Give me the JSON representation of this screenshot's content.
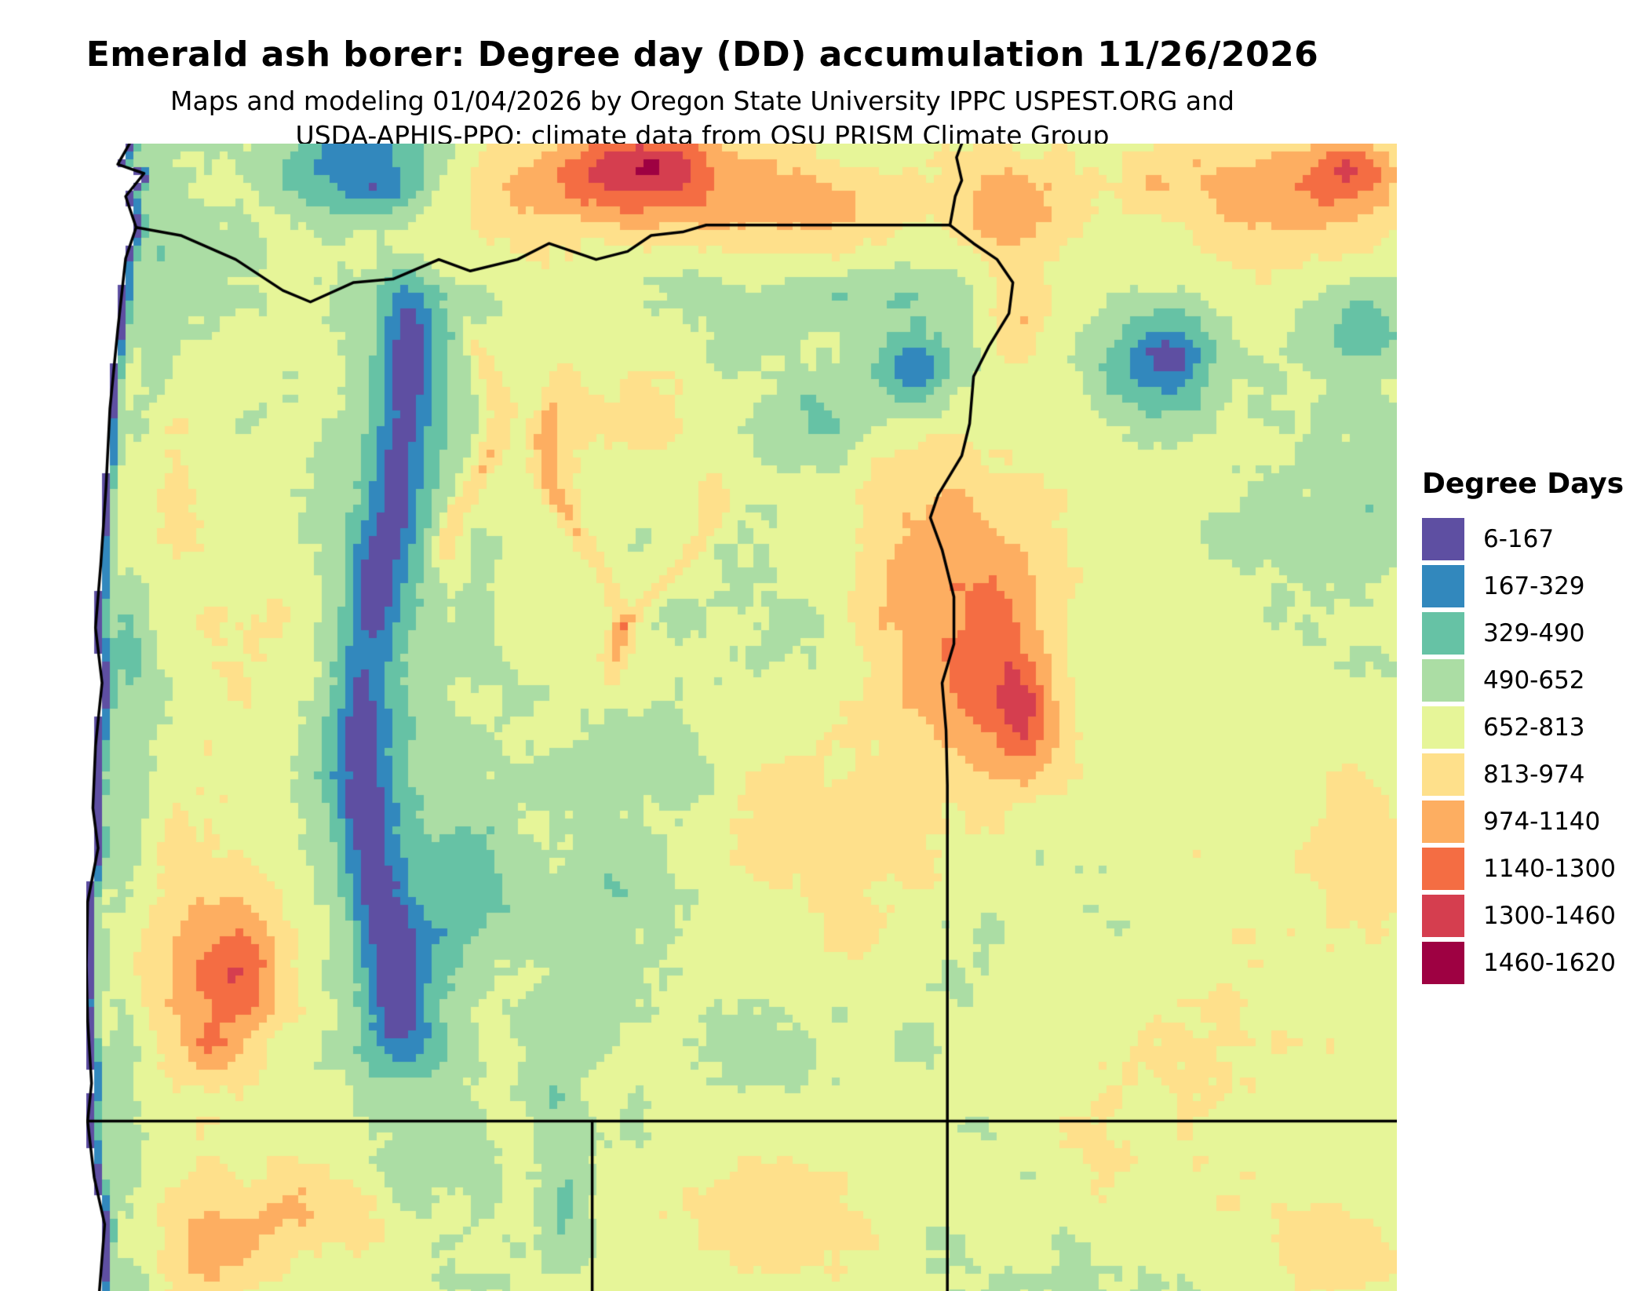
{
  "header": {
    "title": "Emerald ash borer: Degree day (DD) accumulation 11/26/2026",
    "subtitle_line1": "Maps and modeling 01/04/2026 by Oregon State University IPPC USPEST.ORG and",
    "subtitle_line2": "USDA-APHIS-PPQ; climate data from OSU PRISM Climate Group"
  },
  "legend": {
    "title": "Degree Days",
    "entries": [
      {
        "label": "6-167",
        "color": "#5e4fa2"
      },
      {
        "label": "167-329",
        "color": "#3288bd"
      },
      {
        "label": "329-490",
        "color": "#66c2a5"
      },
      {
        "label": "490-652",
        "color": "#abdda4"
      },
      {
        "label": "652-813",
        "color": "#e6f598"
      },
      {
        "label": "813-974",
        "color": "#fee08b"
      },
      {
        "label": "974-1140",
        "color": "#fdae61"
      },
      {
        "label": "1140-1300",
        "color": "#f46d43"
      },
      {
        "label": "1300-1460",
        "color": "#d53e4f"
      },
      {
        "label": "1460-1620",
        "color": "#9e0142"
      }
    ]
  },
  "chart_data": {
    "type": "heatmap",
    "title": "Emerald ash borer: Degree day (DD) accumulation 11/26/2026",
    "legend_title": "Degree Days",
    "bin_labels": [
      "6-167",
      "167-329",
      "329-490",
      "490-652",
      "652-813",
      "813-974",
      "974-1140",
      "1140-1300",
      "1300-1460",
      "1460-1620"
    ],
    "bin_colors": [
      "#5e4fa2",
      "#3288bd",
      "#66c2a5",
      "#abdda4",
      "#e6f598",
      "#fee08b",
      "#fdae61",
      "#f46d43",
      "#d53e4f",
      "#9e0142"
    ],
    "bin_edges": [
      6,
      167,
      329,
      490,
      652,
      813,
      974,
      1140,
      1300,
      1460,
      1620
    ],
    "region": "Oregon state border shown over a gridded degree-day raster"
  },
  "map": {
    "base_value": 700,
    "bins": [
      6,
      167,
      329,
      490,
      652,
      813,
      974,
      1140,
      1300,
      1460,
      1620
    ],
    "ocean_color": "#ffffff",
    "border_color": "#000000",
    "features": [
      [
        0.42,
        0.035,
        0.13,
        0.05,
        470
      ],
      [
        0.435,
        0.015,
        0.05,
        0.03,
        320
      ],
      [
        0.56,
        0.065,
        0.08,
        0.04,
        260
      ],
      [
        0.7,
        0.05,
        0.05,
        0.05,
        340
      ],
      [
        0.71,
        0.15,
        0.025,
        0.05,
        240
      ],
      [
        0.955,
        0.04,
        0.06,
        0.05,
        360
      ],
      [
        0.965,
        0.02,
        0.03,
        0.02,
        260
      ],
      [
        0.84,
        0.03,
        0.07,
        0.04,
        220
      ],
      [
        0.89,
        0.09,
        0.07,
        0.05,
        200
      ],
      [
        0.09,
        0.7,
        0.065,
        0.1,
        330
      ],
      [
        0.115,
        0.725,
        0.035,
        0.045,
        320
      ],
      [
        0.095,
        0.79,
        0.025,
        0.035,
        210
      ],
      [
        0.055,
        0.3,
        0.045,
        0.11,
        170
      ],
      [
        0.13,
        0.44,
        0.055,
        0.08,
        180
      ],
      [
        0.66,
        0.4,
        0.07,
        0.13,
        430
      ],
      [
        0.7,
        0.47,
        0.04,
        0.08,
        300
      ],
      [
        0.715,
        0.5,
        0.025,
        0.05,
        280
      ],
      [
        0.57,
        0.6,
        0.09,
        0.08,
        230
      ],
      [
        0.587,
        0.683,
        0.022,
        0.028,
        170
      ],
      [
        0.1,
        0.955,
        0.07,
        0.05,
        290
      ],
      [
        0.19,
        0.92,
        0.05,
        0.05,
        230
      ],
      [
        0.52,
        0.93,
        0.08,
        0.05,
        210
      ],
      [
        0.85,
        0.78,
        0.12,
        0.14,
        110
      ],
      [
        0.965,
        0.62,
        0.035,
        0.07,
        260
      ],
      [
        0.95,
        0.96,
        0.08,
        0.05,
        190
      ],
      [
        0.38,
        0.28,
        0.09,
        0.1,
        120
      ],
      [
        0.21,
        0.02,
        0.065,
        0.045,
        -500
      ],
      [
        0.225,
        0.04,
        0.03,
        0.02,
        -150
      ],
      [
        0.63,
        0.2,
        0.05,
        0.04,
        -430
      ],
      [
        0.635,
        0.195,
        0.02,
        0.017,
        -150
      ],
      [
        0.55,
        0.25,
        0.05,
        0.035,
        -220
      ],
      [
        0.82,
        0.19,
        0.05,
        0.05,
        -470
      ],
      [
        0.825,
        0.185,
        0.02,
        0.02,
        -170
      ],
      [
        0.55,
        0.22,
        0.02,
        0.02,
        -120
      ],
      [
        0.26,
        0.7,
        0.05,
        0.09,
        -210
      ],
      [
        0.3,
        0.63,
        0.035,
        0.05,
        -150
      ],
      [
        0.41,
        0.64,
        0.04,
        0.06,
        -150
      ],
      [
        0.37,
        0.75,
        0.03,
        0.05,
        -140
      ],
      [
        0.35,
        0.82,
        0.02,
        0.05,
        -150
      ],
      [
        0.46,
        0.55,
        0.03,
        0.04,
        -110
      ],
      [
        0.45,
        0.42,
        0.1,
        0.12,
        -80
      ],
      [
        0.56,
        0.42,
        0.04,
        0.05,
        -110
      ],
      [
        0.97,
        0.32,
        0.05,
        0.06,
        -140
      ],
      [
        0.975,
        0.16,
        0.035,
        0.04,
        -280
      ],
      [
        0.88,
        0.33,
        0.04,
        0.05,
        -120
      ],
      [
        0.5,
        0.78,
        0.04,
        0.05,
        -120
      ],
      [
        0.37,
        0.93,
        0.02,
        0.06,
        -220
      ],
      [
        0.6,
        0.13,
        0.08,
        0.03,
        -150
      ],
      [
        0.5,
        0.18,
        0.04,
        0.03,
        -130
      ]
    ],
    "ridges": [
      {
        "u": 0.228,
        "a1": 0.018,
        "f1": 9,
        "p1": 0,
        "v0": 0.1,
        "v1": 0.82,
        "sigma": 0.022,
        "amp": -420
      },
      {
        "u": 0.228,
        "a1": 0.018,
        "f1": 9,
        "p1": 0,
        "v0": 0.08,
        "v1": 0.95,
        "sigma": 0.06,
        "amp": -190
      },
      {
        "u": 0.295,
        "a1": 0.02,
        "f1": 25,
        "p1": 2,
        "v0": 0.14,
        "v1": 0.4,
        "sigma": 0.01,
        "amp": 280
      },
      {
        "u": 0.38,
        "a1": 0.03,
        "f1": 18,
        "p1": 0,
        "v0": 0.2,
        "v1": 0.48,
        "sigma": 0.009,
        "amp": 260
      },
      {
        "u": 0.44,
        "a1": 0.04,
        "f1": 22,
        "p1": 1,
        "v0": 0.28,
        "v1": 0.5,
        "sigma": 0.009,
        "amp": 220
      }
    ],
    "noise": [
      [
        16,
        120
      ],
      [
        5,
        110
      ],
      [
        1.7,
        70
      ]
    ],
    "borders": {
      "coast": [
        [
          0.033,
          0.0
        ],
        [
          0.024,
          0.018
        ],
        [
          0.044,
          0.026
        ],
        [
          0.03,
          0.046
        ],
        [
          0.038,
          0.073
        ],
        [
          0.03,
          0.1
        ],
        [
          0.024,
          0.162
        ],
        [
          0.018,
          0.231
        ],
        [
          0.015,
          0.3
        ],
        [
          0.011,
          0.367
        ],
        [
          0.007,
          0.422
        ],
        [
          0.012,
          0.47
        ],
        [
          0.007,
          0.525
        ],
        [
          0.005,
          0.579
        ],
        [
          0.009,
          0.614
        ],
        [
          0.001,
          0.661
        ],
        [
          0.0,
          0.716
        ],
        [
          0.001,
          0.764
        ],
        [
          0.004,
          0.819
        ],
        [
          0.001,
          0.852
        ],
        [
          0.006,
          0.901
        ],
        [
          0.014,
          0.942
        ],
        [
          0.01,
          1.0
        ]
      ],
      "north": [
        [
          0.038,
          0.073
        ],
        [
          0.072,
          0.08
        ],
        [
          0.114,
          0.101
        ],
        [
          0.15,
          0.128
        ],
        [
          0.171,
          0.138
        ],
        [
          0.204,
          0.121
        ],
        [
          0.234,
          0.118
        ],
        [
          0.269,
          0.101
        ],
        [
          0.293,
          0.111
        ],
        [
          0.329,
          0.101
        ],
        [
          0.353,
          0.087
        ],
        [
          0.389,
          0.101
        ],
        [
          0.413,
          0.094
        ],
        [
          0.431,
          0.08
        ],
        [
          0.455,
          0.077
        ],
        [
          0.473,
          0.071
        ],
        [
          0.659,
          0.071
        ]
      ],
      "idaho_north": [
        [
          0.659,
          0.071
        ],
        [
          0.663,
          0.046
        ],
        [
          0.668,
          0.032
        ],
        [
          0.664,
          0.012
        ],
        [
          0.668,
          0.0
        ]
      ],
      "idaho_south": [
        [
          0.659,
          0.071
        ],
        [
          0.677,
          0.087
        ],
        [
          0.695,
          0.101
        ],
        [
          0.707,
          0.121
        ],
        [
          0.704,
          0.148
        ],
        [
          0.689,
          0.176
        ],
        [
          0.677,
          0.203
        ],
        [
          0.674,
          0.244
        ],
        [
          0.668,
          0.272
        ],
        [
          0.65,
          0.306
        ],
        [
          0.644,
          0.326
        ],
        [
          0.653,
          0.354
        ],
        [
          0.662,
          0.395
        ],
        [
          0.662,
          0.436
        ],
        [
          0.653,
          0.47
        ],
        [
          0.656,
          0.511
        ],
        [
          0.657,
          0.559
        ],
        [
          0.657,
          1.0
        ]
      ],
      "south": [
        [
          0.0,
          0.852
        ],
        [
          1.0,
          0.852
        ]
      ],
      "ca_nv": [
        [
          0.386,
          0.852
        ],
        [
          0.386,
          1.0
        ]
      ]
    }
  }
}
